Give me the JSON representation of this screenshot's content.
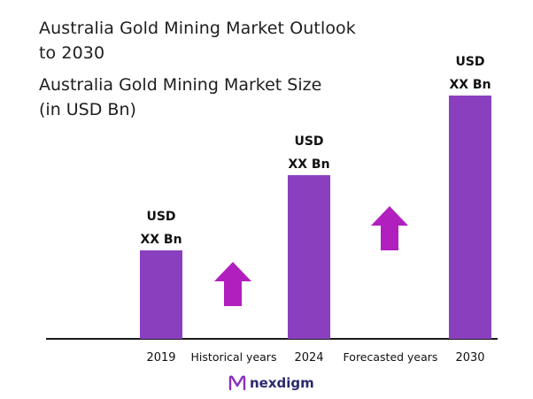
{
  "title_lines": [
    "Australia Gold Mining Market Outlook",
    "to 2030"
  ],
  "subtitle_lines": [
    "Australia Gold Mining Market Size",
    "(in USD Bn)"
  ],
  "chart_data": {
    "type": "bar",
    "categories": [
      "2019",
      "2024",
      "2030"
    ],
    "values": [
      1.0,
      1.85,
      2.75
    ],
    "value_label_lines": [
      "USD",
      "XX Bn"
    ],
    "between_labels": [
      "Historical years",
      "Forecasted years"
    ],
    "bar_color": "#8a3fbf",
    "arrow_color": "#b11fbf"
  },
  "brand": {
    "name": "nexdigm",
    "color": "#2a2a6e",
    "mark_color": "#8a2fbf"
  }
}
